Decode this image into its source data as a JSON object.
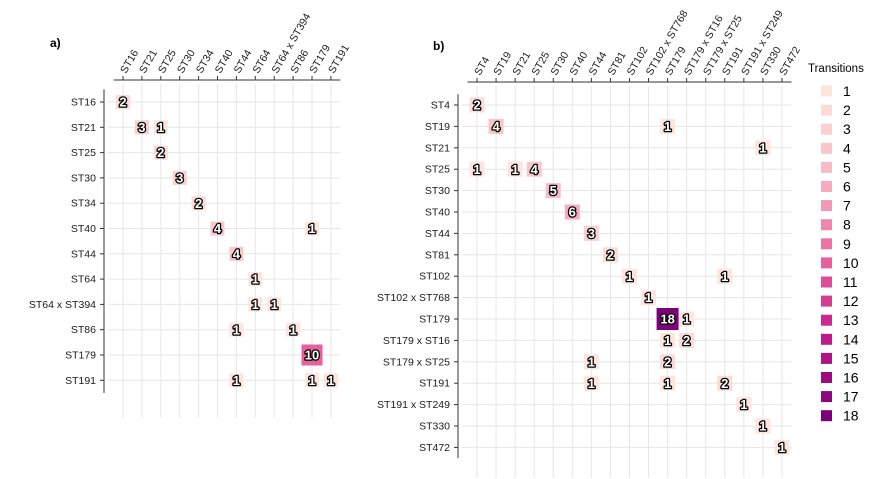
{
  "chart_data": [
    {
      "type": "heatmap",
      "panel": "a)",
      "x_categories": [
        "ST16",
        "ST21",
        "ST25",
        "ST30",
        "ST34",
        "ST40",
        "ST44",
        "ST64",
        "ST64 x ST394",
        "ST86",
        "ST179",
        "ST191"
      ],
      "y_categories": [
        "ST16",
        "ST21",
        "ST25",
        "ST30",
        "ST34",
        "ST40",
        "ST44",
        "ST64",
        "ST64 x ST394",
        "ST86",
        "ST179",
        "ST191"
      ],
      "cells": [
        {
          "x": "ST16",
          "y": "ST16",
          "value": 2
        },
        {
          "x": "ST21",
          "y": "ST21",
          "value": 3
        },
        {
          "x": "ST25",
          "y": "ST21",
          "value": 1
        },
        {
          "x": "ST25",
          "y": "ST25",
          "value": 2
        },
        {
          "x": "ST30",
          "y": "ST30",
          "value": 3
        },
        {
          "x": "ST34",
          "y": "ST34",
          "value": 2
        },
        {
          "x": "ST40",
          "y": "ST40",
          "value": 4
        },
        {
          "x": "ST179",
          "y": "ST40",
          "value": 1
        },
        {
          "x": "ST44",
          "y": "ST44",
          "value": 4
        },
        {
          "x": "ST64",
          "y": "ST64",
          "value": 1
        },
        {
          "x": "ST64",
          "y": "ST64 x ST394",
          "value": 1
        },
        {
          "x": "ST64 x ST394",
          "y": "ST64 x ST394",
          "value": 1
        },
        {
          "x": "ST44",
          "y": "ST86",
          "value": 1
        },
        {
          "x": "ST86",
          "y": "ST86",
          "value": 1
        },
        {
          "x": "ST179",
          "y": "ST179",
          "value": 10
        },
        {
          "x": "ST44",
          "y": "ST191",
          "value": 1
        },
        {
          "x": "ST179",
          "y": "ST191",
          "value": 1
        },
        {
          "x": "ST191",
          "y": "ST191",
          "value": 1
        }
      ]
    },
    {
      "type": "heatmap",
      "panel": "b)",
      "x_categories": [
        "ST4",
        "ST19",
        "ST21",
        "ST25",
        "ST30",
        "ST40",
        "ST44",
        "ST81",
        "ST102",
        "ST102 x ST768",
        "ST179",
        "ST179 x ST16",
        "ST179 x ST25",
        "ST191",
        "ST191 x ST249",
        "ST330",
        "ST472"
      ],
      "y_categories": [
        "ST4",
        "ST19",
        "ST21",
        "ST25",
        "ST30",
        "ST40",
        "ST44",
        "ST81",
        "ST102",
        "ST102 x ST768",
        "ST179",
        "ST179 x ST16",
        "ST179 x ST25",
        "ST191",
        "ST191 x ST249",
        "ST330",
        "ST472"
      ],
      "cells": [
        {
          "x": "ST4",
          "y": "ST4",
          "value": 2
        },
        {
          "x": "ST19",
          "y": "ST19",
          "value": 4
        },
        {
          "x": "ST179",
          "y": "ST19",
          "value": 1
        },
        {
          "x": "ST330",
          "y": "ST21",
          "value": 1
        },
        {
          "x": "ST4",
          "y": "ST25",
          "value": 1
        },
        {
          "x": "ST21",
          "y": "ST25",
          "value": 1
        },
        {
          "x": "ST25",
          "y": "ST25",
          "value": 4
        },
        {
          "x": "ST30",
          "y": "ST30",
          "value": 5
        },
        {
          "x": "ST40",
          "y": "ST40",
          "value": 6
        },
        {
          "x": "ST44",
          "y": "ST44",
          "value": 3
        },
        {
          "x": "ST81",
          "y": "ST81",
          "value": 2
        },
        {
          "x": "ST102",
          "y": "ST102",
          "value": 1
        },
        {
          "x": "ST191",
          "y": "ST102",
          "value": 1
        },
        {
          "x": "ST102 x ST768",
          "y": "ST102 x ST768",
          "value": 1
        },
        {
          "x": "ST179",
          "y": "ST179",
          "value": 18
        },
        {
          "x": "ST179 x ST16",
          "y": "ST179",
          "value": 1
        },
        {
          "x": "ST179",
          "y": "ST179 x ST16",
          "value": 1
        },
        {
          "x": "ST179 x ST16",
          "y": "ST179 x ST16",
          "value": 2
        },
        {
          "x": "ST44",
          "y": "ST179 x ST25",
          "value": 1
        },
        {
          "x": "ST179",
          "y": "ST179 x ST25",
          "value": 2
        },
        {
          "x": "ST44",
          "y": "ST191",
          "value": 1
        },
        {
          "x": "ST179",
          "y": "ST191",
          "value": 1
        },
        {
          "x": "ST191",
          "y": "ST191",
          "value": 2
        },
        {
          "x": "ST191 x ST249",
          "y": "ST191 x ST249",
          "value": 1
        },
        {
          "x": "ST330",
          "y": "ST330",
          "value": 1
        },
        {
          "x": "ST472",
          "y": "ST472",
          "value": 1
        }
      ]
    }
  ],
  "legend": {
    "title": "Transitions",
    "levels": [
      1,
      2,
      3,
      4,
      5,
      6,
      7,
      8,
      9,
      10,
      11,
      12,
      13,
      14,
      15,
      16,
      17,
      18
    ]
  },
  "colors": {
    "low": "#fde4dc",
    "high": "#7a0177",
    "grid": "#e6e6e6",
    "axis": "#333333"
  }
}
